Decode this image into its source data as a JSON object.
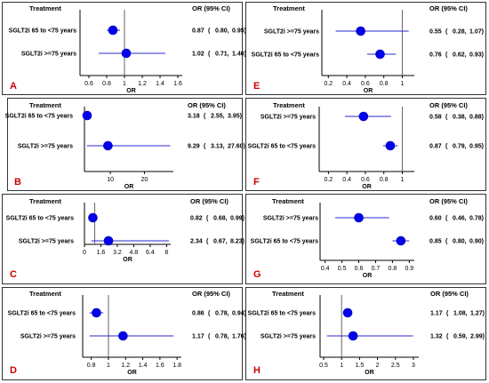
{
  "chart_data": [
    {
      "type": "forest",
      "panel_label": "A",
      "header_treatment": "Treatment",
      "header_or": "OR (95% CI)",
      "xlabel": "OR",
      "xlim": [
        0.5,
        1.65
      ],
      "ref_value": 1,
      "ticks": [
        0.6,
        0.8,
        1,
        1.2,
        1.4,
        1.6
      ],
      "tick_labels": [
        "0.6",
        "0.8",
        "1",
        "1.2",
        "1.4",
        "1.6"
      ],
      "rows": [
        {
          "label": "SGLT2i 65 to <75 years",
          "or": 0.87,
          "lo": 0.8,
          "hi": 0.95,
          "or_text": "0.87",
          "lo_text": "0.80,",
          "hi_text": "0.95)"
        },
        {
          "label": "SGLT2i >=75 years",
          "or": 1.02,
          "lo": 0.71,
          "hi": 1.46,
          "or_text": "1.02",
          "lo_text": "0.71,",
          "hi_text": "1.46)"
        }
      ]
    },
    {
      "type": "forest",
      "panel_label": "B",
      "header_treatment": "Treatment",
      "header_or": "OR (95% CI)",
      "xlabel": "OR",
      "xlim": [
        2.4,
        28.5
      ],
      "ref_value": null,
      "ticks": [
        10,
        20
      ],
      "tick_labels": [
        "10",
        "20"
      ],
      "rows": [
        {
          "label": "SGLT2i 65 to <75 years",
          "or": 3.18,
          "lo": 2.55,
          "hi": 3.95,
          "or_text": "3.18",
          "lo_text": "2.55,",
          "hi_text": "3.95)"
        },
        {
          "label": "SGLT2i >=75 years",
          "or": 9.29,
          "lo": 3.13,
          "hi": 27.6,
          "or_text": "9.29",
          "lo_text": "3.13,",
          "hi_text": "27.60)"
        }
      ]
    },
    {
      "type": "forest",
      "panel_label": "C",
      "header_treatment": "Treatment",
      "header_or": "OR (95% CI)",
      "xlabel": "OR",
      "xlim": [
        0,
        8.4
      ],
      "ref_value": 1,
      "ticks": [
        0,
        1.6,
        3.2,
        4.8,
        6.4,
        8
      ],
      "tick_labels": [
        "0",
        "1.6",
        "3.2",
        "4.8",
        "6.4",
        "8"
      ],
      "rows": [
        {
          "label": "SGLT2i 65 to <75 years",
          "or": 0.82,
          "lo": 0.68,
          "hi": 0.99,
          "or_text": "0.82",
          "lo_text": "0.68,",
          "hi_text": "0.99)"
        },
        {
          "label": "SGLT2i >=75 years",
          "or": 2.34,
          "lo": 0.67,
          "hi": 8.23,
          "or_text": "2.34",
          "lo_text": "0.67,",
          "hi_text": "8.23)"
        }
      ]
    },
    {
      "type": "forest",
      "panel_label": "D",
      "header_treatment": "Treatment",
      "header_or": "OR (95% CI)",
      "xlabel": "OR",
      "xlim": [
        0.7,
        1.85
      ],
      "ref_value": 1,
      "ticks": [
        0.8,
        1,
        1.2,
        1.4,
        1.6,
        1.8
      ],
      "tick_labels": [
        "0.8",
        "1",
        "1.2",
        "1.4",
        "1.6",
        "1.8"
      ],
      "rows": [
        {
          "label": "SGLT2i 65 to <75 years",
          "or": 0.86,
          "lo": 0.78,
          "hi": 0.94,
          "or_text": "0.86",
          "lo_text": "0.78,",
          "hi_text": "0.94)"
        },
        {
          "label": "SGLT2i >=75 years",
          "or": 1.17,
          "lo": 0.78,
          "hi": 1.76,
          "or_text": "1.17",
          "lo_text": "0.78,",
          "hi_text": "1.76)"
        }
      ]
    },
    {
      "type": "forest",
      "panel_label": "E",
      "header_treatment": "Treatment",
      "header_or": "OR (95% CI)",
      "xlabel": "OR",
      "xlim": [
        0.13,
        1.13
      ],
      "ref_value": 1,
      "ticks": [
        0.2,
        0.4,
        0.6,
        0.8,
        1
      ],
      "tick_labels": [
        "0.2",
        "0.4",
        "0.6",
        "0.8",
        "1"
      ],
      "rows": [
        {
          "label": "SGLT2i >=75 years",
          "or": 0.55,
          "lo": 0.28,
          "hi": 1.07,
          "or_text": "0.55",
          "lo_text": "0.28,",
          "hi_text": "1.07)"
        },
        {
          "label": "SGLT2i 65 to <75 years",
          "or": 0.76,
          "lo": 0.62,
          "hi": 0.93,
          "or_text": "0.76",
          "lo_text": "0.62,",
          "hi_text": "0.93)"
        }
      ]
    },
    {
      "type": "forest",
      "panel_label": "F",
      "header_treatment": "Treatment",
      "header_or": "OR (95% CI)",
      "xlabel": "OR",
      "xlim": [
        0.1,
        1.13
      ],
      "ref_value": 1,
      "ticks": [
        0.2,
        0.4,
        0.6,
        0.8,
        1
      ],
      "tick_labels": [
        "0.2",
        "0.4",
        "0.6",
        "0.8",
        "1"
      ],
      "rows": [
        {
          "label": "SGLT2i >=75 years",
          "or": 0.58,
          "lo": 0.38,
          "hi": 0.88,
          "or_text": "0.58",
          "lo_text": "0.38,",
          "hi_text": "0.88)"
        },
        {
          "label": "SGLT2i 65 to <75 years",
          "or": 0.87,
          "lo": 0.79,
          "hi": 0.95,
          "or_text": "0.87",
          "lo_text": "0.79,",
          "hi_text": "0.95)"
        }
      ]
    },
    {
      "type": "forest",
      "panel_label": "G",
      "header_treatment": "Treatment",
      "header_or": "OR (95% CI)",
      "xlabel": "OR",
      "xlim": [
        0.37,
        0.93
      ],
      "ref_value": null,
      "ticks": [
        0.4,
        0.5,
        0.6,
        0.7,
        0.8,
        0.9
      ],
      "tick_labels": [
        "0.4",
        "0.5",
        "0.6",
        "0.7",
        "0.8",
        "0.9"
      ],
      "rows": [
        {
          "label": "SGLT2i >=75 years",
          "or": 0.6,
          "lo": 0.46,
          "hi": 0.78,
          "or_text": "0.60",
          "lo_text": "0.46,",
          "hi_text": "0.78)"
        },
        {
          "label": "SGLT2i 65 to <75 years",
          "or": 0.85,
          "lo": 0.8,
          "hi": 0.9,
          "or_text": "0.85",
          "lo_text": "0.80,",
          "hi_text": "0.90)"
        }
      ]
    },
    {
      "type": "forest",
      "panel_label": "H",
      "header_treatment": "Treatment",
      "header_or": "OR (95% CI)",
      "xlabel": "OR",
      "xlim": [
        0.4,
        3.15
      ],
      "ref_value": 1,
      "ticks": [
        0.5,
        1,
        1.5,
        2,
        2.5,
        3
      ],
      "tick_labels": [
        "0.5",
        "1",
        "1.5",
        "2",
        "2.5",
        "3"
      ],
      "rows": [
        {
          "label": "SGLT2i 65 to <75 years",
          "or": 1.17,
          "lo": 1.08,
          "hi": 1.27,
          "or_text": "1.17",
          "lo_text": "1.08,",
          "hi_text": "1.27)"
        },
        {
          "label": "SGLT2i >=75 years",
          "or": 1.32,
          "lo": 0.59,
          "hi": 2.99,
          "or_text": "1.32",
          "lo_text": "0.59,",
          "hi_text": "2.99)"
        }
      ]
    }
  ],
  "colors": {
    "marker": "#0000ee",
    "ci_line": "#2a2acc",
    "axis": "#000000",
    "ref_line": "#666666",
    "frame": "#333333",
    "panel_label": "#cc0000",
    "text": "#000000"
  }
}
